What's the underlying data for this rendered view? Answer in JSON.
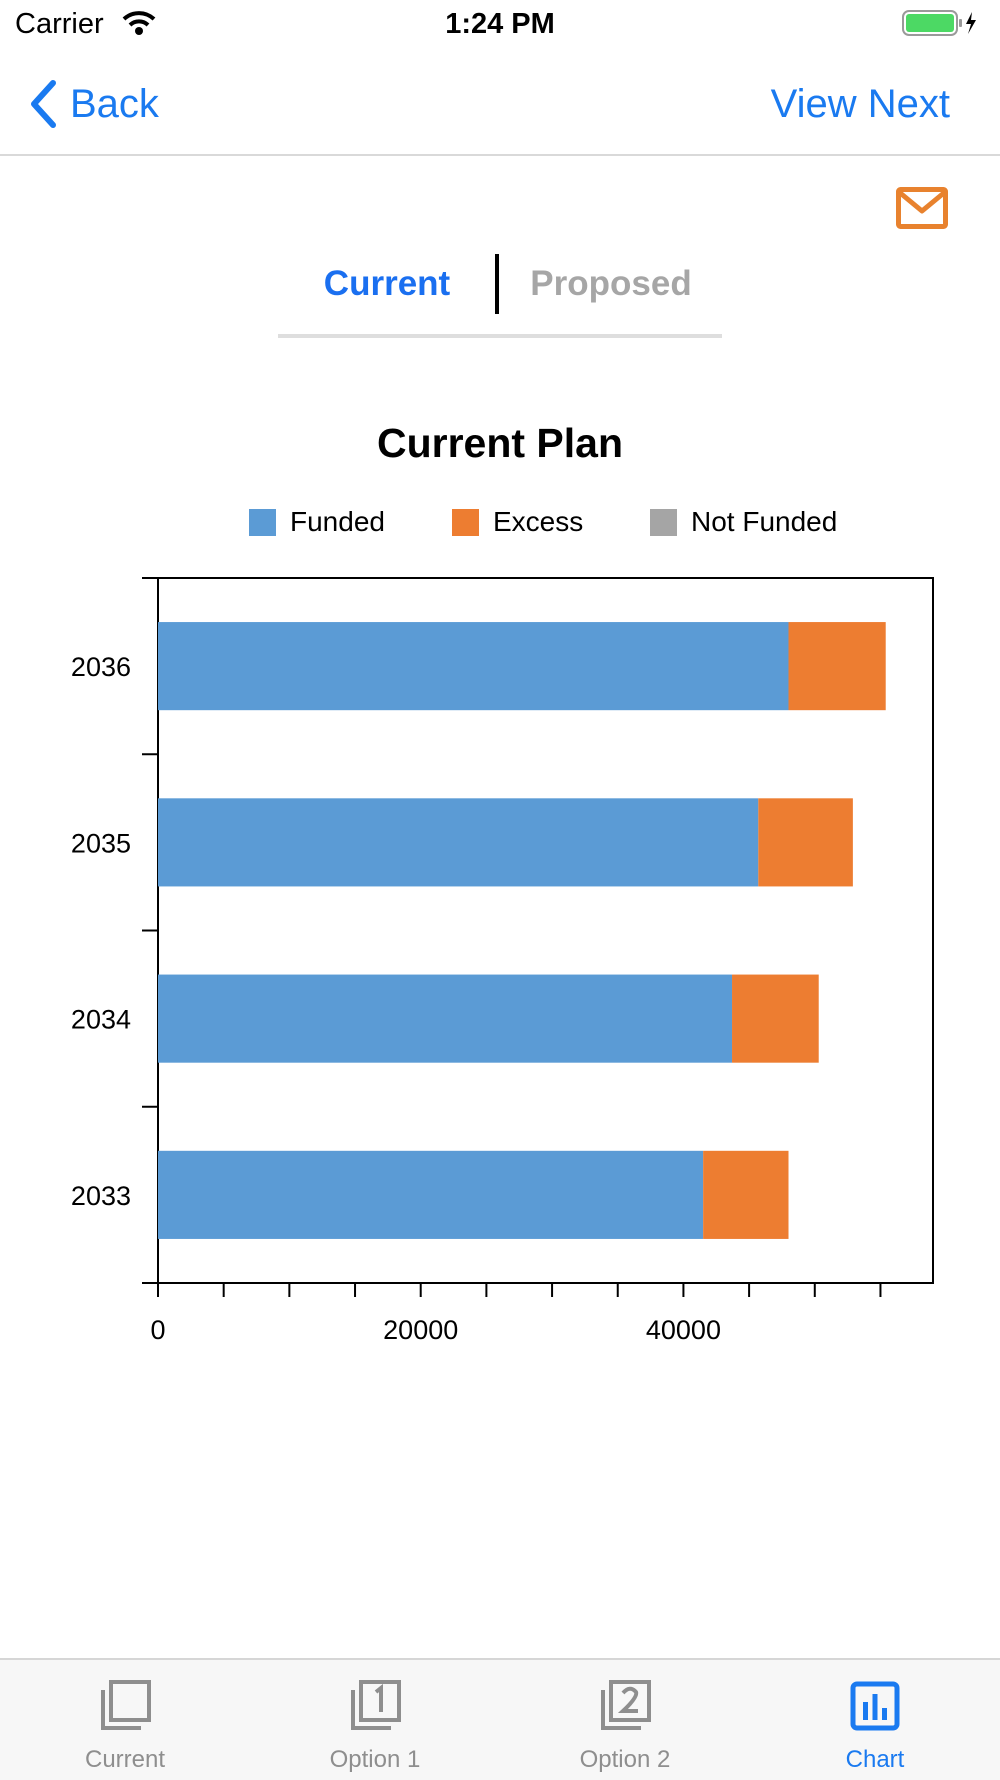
{
  "status_bar": {
    "carrier": "Carrier",
    "time": "1:24 PM"
  },
  "nav": {
    "back_label": "Back",
    "next_label": "View Next"
  },
  "segment": {
    "tabs": [
      "Current",
      "Proposed"
    ],
    "selected": "Current"
  },
  "chart_data": {
    "type": "bar",
    "orientation": "horizontal",
    "stacked": true,
    "title": "Current Plan",
    "categories": [
      "2033",
      "2034",
      "2035",
      "2036"
    ],
    "series": [
      {
        "name": "Funded",
        "color": "#5b9bd5",
        "values": [
          41500,
          43700,
          45700,
          48000
        ]
      },
      {
        "name": "Excess",
        "color": "#ed7d31",
        "values": [
          6500,
          6600,
          7200,
          7400
        ]
      },
      {
        "name": "Not Funded",
        "color": "#a5a5a5",
        "values": [
          0,
          0,
          0,
          0
        ]
      }
    ],
    "xticks": [
      "0",
      "20000",
      "40000"
    ],
    "xlim": [
      0,
      59000
    ],
    "xlabel": "",
    "ylabel": "",
    "legend": "top",
    "grid": false
  },
  "tab_bar": {
    "items": [
      {
        "label": "Current",
        "icon": "current-icon"
      },
      {
        "label": "Option 1",
        "icon": "option-1-icon"
      },
      {
        "label": "Option 2",
        "icon": "option-2-icon"
      },
      {
        "label": "Chart",
        "icon": "chart-icon"
      }
    ],
    "selected": "Chart"
  },
  "colors": {
    "accent": "#1a7af0",
    "mail_icon": "#e8822e",
    "battery": "#4cd964"
  }
}
